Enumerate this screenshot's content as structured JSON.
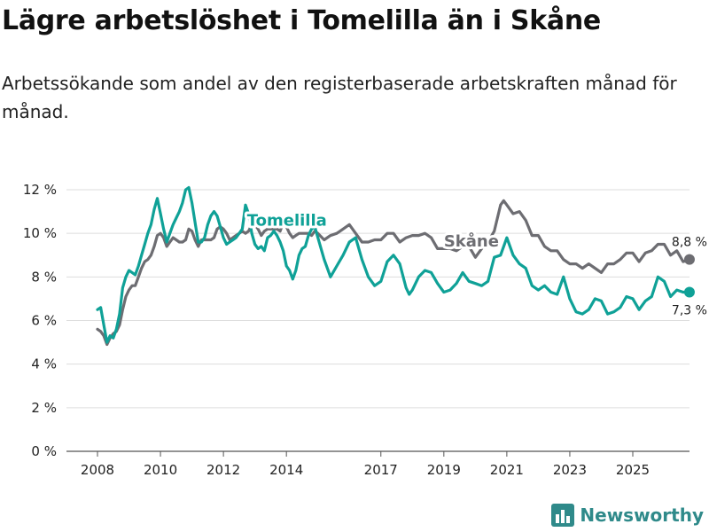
{
  "title": "Lägre arbetslöshet i Tomelilla än i Skåne",
  "subtitle": "Arbetssökande som andel av den registerbaserade arbetskraften månad för månad.",
  "brand": {
    "name": "Newsworthy",
    "icon": "bar-chart-logo-icon"
  },
  "colors": {
    "tomelilla": "#0fa197",
    "skane": "#6d6d72",
    "grid": "#dddddd",
    "axis": "#555555"
  },
  "chart_data": {
    "type": "line",
    "title": "Lägre arbetslöshet i Tomelilla än i Skåne",
    "xlabel": "",
    "ylabel": "",
    "ylim": [
      0,
      12
    ],
    "xlim": [
      2007.6,
      2026.8
    ],
    "grid": true,
    "yticks": [
      0,
      2,
      4,
      6,
      8,
      10,
      12
    ],
    "ytick_labels": [
      "0 %",
      "2 %",
      "4 %",
      "6 %",
      "8 %",
      "10 %",
      "12 %"
    ],
    "xticks": [
      2008,
      2010,
      2012,
      2014,
      2017,
      2019,
      2021,
      2023,
      2025
    ],
    "xtick_labels": [
      "2008",
      "2010",
      "2012",
      "2014",
      "2017",
      "2019",
      "2021",
      "2023",
      "2025"
    ],
    "series": [
      {
        "name": "Skåne",
        "label": "Skåne",
        "end_label": "8,8 %",
        "points": [
          [
            2008.0,
            5.6
          ],
          [
            2008.1,
            5.5
          ],
          [
            2008.2,
            5.3
          ],
          [
            2008.3,
            4.9
          ],
          [
            2008.4,
            5.2
          ],
          [
            2008.5,
            5.4
          ],
          [
            2008.6,
            5.5
          ],
          [
            2008.7,
            5.8
          ],
          [
            2008.8,
            6.5
          ],
          [
            2008.9,
            7.1
          ],
          [
            2009.0,
            7.4
          ],
          [
            2009.1,
            7.6
          ],
          [
            2009.2,
            7.6
          ],
          [
            2009.3,
            8.0
          ],
          [
            2009.4,
            8.4
          ],
          [
            2009.5,
            8.7
          ],
          [
            2009.6,
            8.8
          ],
          [
            2009.7,
            9.0
          ],
          [
            2009.8,
            9.4
          ],
          [
            2009.9,
            9.9
          ],
          [
            2010.0,
            10.0
          ],
          [
            2010.1,
            9.8
          ],
          [
            2010.2,
            9.4
          ],
          [
            2010.3,
            9.6
          ],
          [
            2010.4,
            9.8
          ],
          [
            2010.5,
            9.7
          ],
          [
            2010.6,
            9.6
          ],
          [
            2010.7,
            9.6
          ],
          [
            2010.8,
            9.7
          ],
          [
            2010.9,
            10.2
          ],
          [
            2011.0,
            10.1
          ],
          [
            2011.1,
            9.7
          ],
          [
            2011.2,
            9.4
          ],
          [
            2011.3,
            9.7
          ],
          [
            2011.4,
            9.7
          ],
          [
            2011.5,
            9.7
          ],
          [
            2011.6,
            9.7
          ],
          [
            2011.7,
            9.8
          ],
          [
            2011.8,
            10.2
          ],
          [
            2011.9,
            10.3
          ],
          [
            2012.0,
            10.2
          ],
          [
            2012.1,
            10.0
          ],
          [
            2012.2,
            9.7
          ],
          [
            2012.3,
            9.8
          ],
          [
            2012.4,
            9.9
          ],
          [
            2012.5,
            10.0
          ],
          [
            2012.6,
            10.1
          ],
          [
            2012.7,
            10.0
          ],
          [
            2012.8,
            10.1
          ],
          [
            2012.9,
            10.4
          ],
          [
            2013.0,
            10.4
          ],
          [
            2013.1,
            10.2
          ],
          [
            2013.2,
            9.9
          ],
          [
            2013.3,
            10.1
          ],
          [
            2013.4,
            10.2
          ],
          [
            2013.5,
            10.2
          ],
          [
            2013.6,
            10.2
          ],
          [
            2013.7,
            10.2
          ],
          [
            2013.8,
            10.1
          ],
          [
            2013.9,
            10.5
          ],
          [
            2014.0,
            10.3
          ],
          [
            2014.1,
            10.0
          ],
          [
            2014.2,
            9.8
          ],
          [
            2014.3,
            9.9
          ],
          [
            2014.4,
            10.0
          ],
          [
            2014.5,
            10.0
          ],
          [
            2014.6,
            10.0
          ],
          [
            2014.7,
            10.0
          ],
          [
            2014.8,
            9.9
          ],
          [
            2014.9,
            10.1
          ],
          [
            2015.0,
            10.0
          ],
          [
            2015.2,
            9.7
          ],
          [
            2015.4,
            9.9
          ],
          [
            2015.6,
            10.0
          ],
          [
            2015.8,
            10.2
          ],
          [
            2016.0,
            10.4
          ],
          [
            2016.2,
            10.0
          ],
          [
            2016.4,
            9.6
          ],
          [
            2016.6,
            9.6
          ],
          [
            2016.8,
            9.7
          ],
          [
            2017.0,
            9.7
          ],
          [
            2017.2,
            10.0
          ],
          [
            2017.4,
            10.0
          ],
          [
            2017.6,
            9.6
          ],
          [
            2017.8,
            9.8
          ],
          [
            2018.0,
            9.9
          ],
          [
            2018.2,
            9.9
          ],
          [
            2018.4,
            10.0
          ],
          [
            2018.6,
            9.8
          ],
          [
            2018.8,
            9.3
          ],
          [
            2019.0,
            9.3
          ],
          [
            2019.2,
            9.3
          ],
          [
            2019.4,
            9.2
          ],
          [
            2019.6,
            9.4
          ],
          [
            2019.8,
            9.4
          ],
          [
            2020.0,
            8.9
          ],
          [
            2020.2,
            9.3
          ],
          [
            2020.4,
            9.6
          ],
          [
            2020.6,
            10.1
          ],
          [
            2020.8,
            11.3
          ],
          [
            2020.9,
            11.5
          ],
          [
            2021.0,
            11.3
          ],
          [
            2021.2,
            10.9
          ],
          [
            2021.4,
            11.0
          ],
          [
            2021.6,
            10.6
          ],
          [
            2021.8,
            9.9
          ],
          [
            2022.0,
            9.9
          ],
          [
            2022.2,
            9.4
          ],
          [
            2022.4,
            9.2
          ],
          [
            2022.6,
            9.2
          ],
          [
            2022.8,
            8.8
          ],
          [
            2023.0,
            8.6
          ],
          [
            2023.2,
            8.6
          ],
          [
            2023.4,
            8.4
          ],
          [
            2023.6,
            8.6
          ],
          [
            2023.8,
            8.4
          ],
          [
            2024.0,
            8.2
          ],
          [
            2024.2,
            8.6
          ],
          [
            2024.4,
            8.6
          ],
          [
            2024.6,
            8.8
          ],
          [
            2024.8,
            9.1
          ],
          [
            2025.0,
            9.1
          ],
          [
            2025.2,
            8.7
          ],
          [
            2025.4,
            9.1
          ],
          [
            2025.6,
            9.2
          ],
          [
            2025.8,
            9.5
          ],
          [
            2026.0,
            9.5
          ],
          [
            2026.2,
            9.0
          ],
          [
            2026.4,
            9.2
          ],
          [
            2026.6,
            8.7
          ],
          [
            2026.8,
            8.8
          ]
        ]
      },
      {
        "name": "Tomelilla",
        "label": "Tomelilla",
        "end_label": "7,3 %",
        "points": [
          [
            2008.0,
            6.5
          ],
          [
            2008.1,
            6.6
          ],
          [
            2008.2,
            5.8
          ],
          [
            2008.3,
            5.0
          ],
          [
            2008.4,
            5.3
          ],
          [
            2008.5,
            5.2
          ],
          [
            2008.6,
            5.6
          ],
          [
            2008.7,
            6.3
          ],
          [
            2008.8,
            7.5
          ],
          [
            2008.9,
            8.0
          ],
          [
            2009.0,
            8.3
          ],
          [
            2009.1,
            8.2
          ],
          [
            2009.2,
            8.1
          ],
          [
            2009.3,
            8.5
          ],
          [
            2009.4,
            9.0
          ],
          [
            2009.5,
            9.5
          ],
          [
            2009.6,
            10.0
          ],
          [
            2009.7,
            10.4
          ],
          [
            2009.8,
            11.1
          ],
          [
            2009.9,
            11.6
          ],
          [
            2010.0,
            10.9
          ],
          [
            2010.1,
            10.2
          ],
          [
            2010.2,
            9.6
          ],
          [
            2010.3,
            10.0
          ],
          [
            2010.4,
            10.4
          ],
          [
            2010.5,
            10.7
          ],
          [
            2010.6,
            11.0
          ],
          [
            2010.7,
            11.4
          ],
          [
            2010.8,
            12.0
          ],
          [
            2010.9,
            12.1
          ],
          [
            2011.0,
            11.4
          ],
          [
            2011.1,
            10.5
          ],
          [
            2011.2,
            9.6
          ],
          [
            2011.3,
            9.6
          ],
          [
            2011.4,
            9.8
          ],
          [
            2011.5,
            10.4
          ],
          [
            2011.6,
            10.8
          ],
          [
            2011.7,
            11.0
          ],
          [
            2011.8,
            10.8
          ],
          [
            2011.9,
            10.3
          ],
          [
            2012.0,
            9.8
          ],
          [
            2012.1,
            9.5
          ],
          [
            2012.2,
            9.6
          ],
          [
            2012.3,
            9.7
          ],
          [
            2012.4,
            9.8
          ],
          [
            2012.5,
            10.0
          ],
          [
            2012.6,
            10.2
          ],
          [
            2012.7,
            11.3
          ],
          [
            2012.8,
            10.9
          ],
          [
            2012.9,
            10.0
          ],
          [
            2013.0,
            9.5
          ],
          [
            2013.1,
            9.3
          ],
          [
            2013.2,
            9.4
          ],
          [
            2013.3,
            9.2
          ],
          [
            2013.4,
            9.8
          ],
          [
            2013.5,
            9.9
          ],
          [
            2013.6,
            10.1
          ],
          [
            2013.7,
            9.9
          ],
          [
            2013.8,
            9.6
          ],
          [
            2013.9,
            9.2
          ],
          [
            2014.0,
            8.5
          ],
          [
            2014.1,
            8.3
          ],
          [
            2014.2,
            7.9
          ],
          [
            2014.3,
            8.3
          ],
          [
            2014.4,
            9.0
          ],
          [
            2014.5,
            9.3
          ],
          [
            2014.6,
            9.4
          ],
          [
            2014.7,
            9.9
          ],
          [
            2014.8,
            10.2
          ],
          [
            2014.9,
            10.3
          ],
          [
            2015.0,
            9.8
          ],
          [
            2015.2,
            8.8
          ],
          [
            2015.4,
            8.0
          ],
          [
            2015.6,
            8.5
          ],
          [
            2015.8,
            9.0
          ],
          [
            2016.0,
            9.6
          ],
          [
            2016.2,
            9.8
          ],
          [
            2016.4,
            8.8
          ],
          [
            2016.6,
            8.0
          ],
          [
            2016.8,
            7.6
          ],
          [
            2017.0,
            7.8
          ],
          [
            2017.2,
            8.7
          ],
          [
            2017.4,
            9.0
          ],
          [
            2017.6,
            8.6
          ],
          [
            2017.8,
            7.5
          ],
          [
            2017.9,
            7.2
          ],
          [
            2018.0,
            7.4
          ],
          [
            2018.2,
            8.0
          ],
          [
            2018.4,
            8.3
          ],
          [
            2018.6,
            8.2
          ],
          [
            2018.8,
            7.7
          ],
          [
            2019.0,
            7.3
          ],
          [
            2019.2,
            7.4
          ],
          [
            2019.4,
            7.7
          ],
          [
            2019.6,
            8.2
          ],
          [
            2019.8,
            7.8
          ],
          [
            2020.0,
            7.7
          ],
          [
            2020.2,
            7.6
          ],
          [
            2020.4,
            7.8
          ],
          [
            2020.6,
            8.9
          ],
          [
            2020.8,
            9.0
          ],
          [
            2021.0,
            9.8
          ],
          [
            2021.2,
            9.0
          ],
          [
            2021.4,
            8.6
          ],
          [
            2021.6,
            8.4
          ],
          [
            2021.8,
            7.6
          ],
          [
            2022.0,
            7.4
          ],
          [
            2022.2,
            7.6
          ],
          [
            2022.4,
            7.3
          ],
          [
            2022.6,
            7.2
          ],
          [
            2022.8,
            8.0
          ],
          [
            2023.0,
            7.0
          ],
          [
            2023.2,
            6.4
          ],
          [
            2023.4,
            6.3
          ],
          [
            2023.6,
            6.5
          ],
          [
            2023.8,
            7.0
          ],
          [
            2024.0,
            6.9
          ],
          [
            2024.2,
            6.3
          ],
          [
            2024.4,
            6.4
          ],
          [
            2024.6,
            6.6
          ],
          [
            2024.8,
            7.1
          ],
          [
            2025.0,
            7.0
          ],
          [
            2025.2,
            6.5
          ],
          [
            2025.4,
            6.9
          ],
          [
            2025.6,
            7.1
          ],
          [
            2025.8,
            8.0
          ],
          [
            2026.0,
            7.8
          ],
          [
            2026.2,
            7.1
          ],
          [
            2026.4,
            7.4
          ],
          [
            2026.6,
            7.3
          ],
          [
            2026.8,
            7.3
          ]
        ]
      }
    ],
    "source": "Newsworthy"
  }
}
